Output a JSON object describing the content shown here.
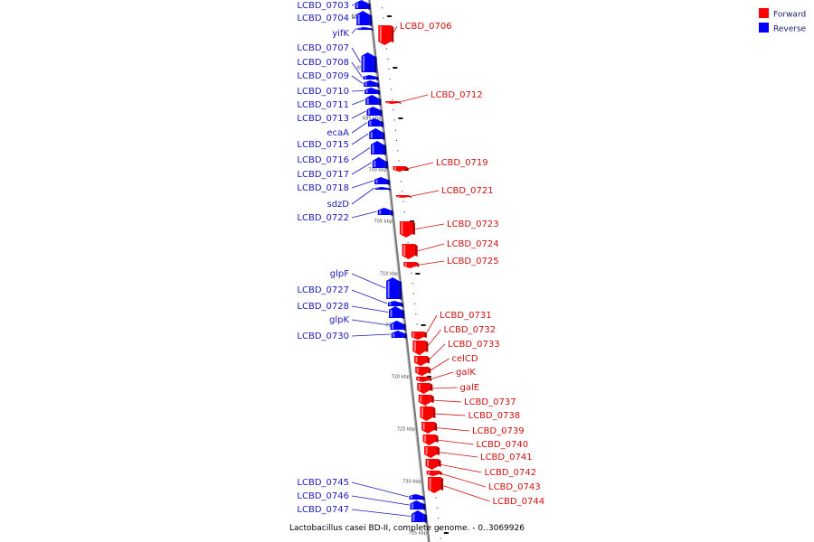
{
  "caption": "Lactobacillus casei BD-II, complete genome. - 0..3069926",
  "colors": {
    "forward": "#ff0000",
    "reverse": "#0000ff"
  },
  "legend": [
    {
      "label": "Forward",
      "strand": "forward"
    },
    {
      "label": "Reverse",
      "strand": "reverse"
    }
  ],
  "kbp_marks": [
    "685 kbp",
    "690 kbp",
    "695 kbp",
    "700 kbp",
    "705 kbp",
    "710 kbp",
    "715 kbp",
    "720 kbp",
    "725 kbp",
    "730 kbp",
    "735 kbp"
  ],
  "reverse_genes": [
    "LCBD_0703",
    "LCBD_0704",
    "yifK",
    "LCBD_0707",
    "LCBD_0708",
    "LCBD_0709",
    "LCBD_0710",
    "LCBD_0711",
    "LCBD_0713",
    "ecaA",
    "LCBD_0715",
    "LCBD_0716",
    "LCBD_0717",
    "LCBD_0718",
    "sdzD",
    "LCBD_0722",
    "glpF",
    "LCBD_0727",
    "LCBD_0728",
    "glpK",
    "LCBD_0730",
    "LCBD_0745",
    "LCBD_0746",
    "LCBD_0747"
  ],
  "forward_genes": [
    "LCBD_0706",
    "LCBD_0712",
    "LCBD_0719",
    "LCBD_0721",
    "LCBD_0723",
    "LCBD_0724",
    "LCBD_0725",
    "LCBD_0731",
    "LCBD_0732",
    "LCBD_0733",
    "celCD",
    "galK",
    "galE",
    "LCBD_0737",
    "LCBD_0738",
    "LCBD_0739",
    "LCBD_0740",
    "LCBD_0741",
    "LCBD_0742",
    "LCBD_0743",
    "LCBD_0744"
  ]
}
